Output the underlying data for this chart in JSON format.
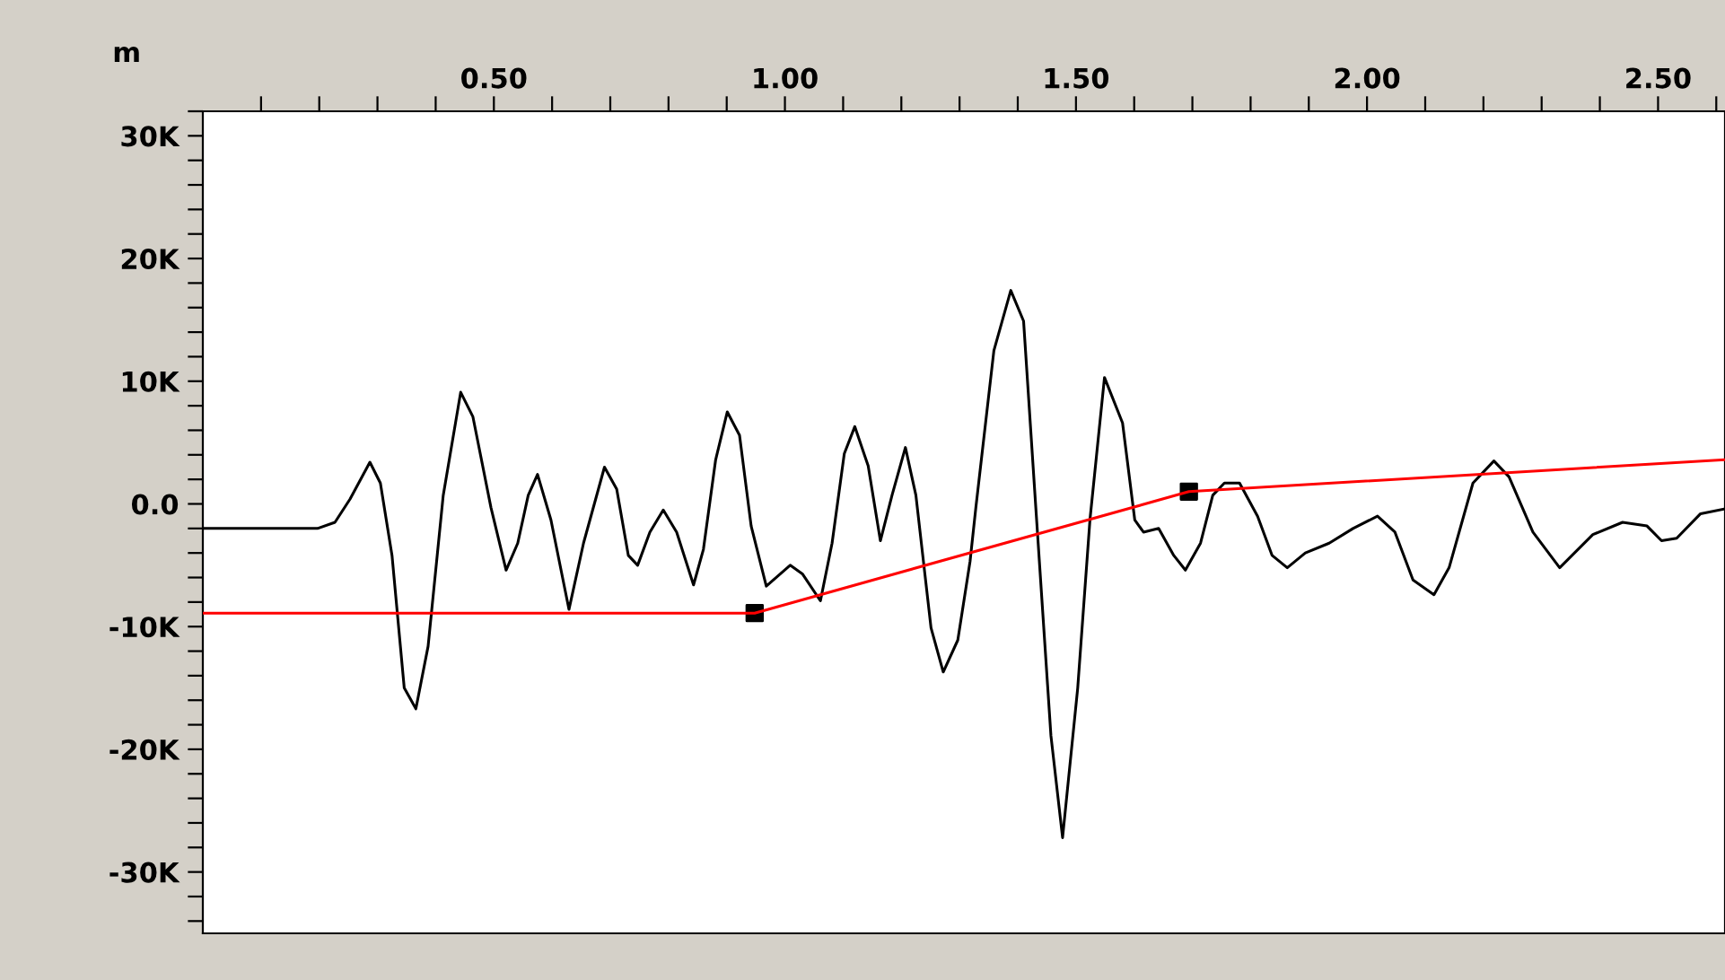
{
  "chart_data": {
    "type": "line",
    "xlabel": "m",
    "xlim": [
      0,
      2.615
    ],
    "ylim": [
      -35000,
      32000
    ],
    "xticks": [
      {
        "value": 0.1,
        "label": null
      },
      {
        "value": 0.2,
        "label": null
      },
      {
        "value": 0.3,
        "label": null
      },
      {
        "value": 0.4,
        "label": null
      },
      {
        "value": 0.5,
        "label": "0.50"
      },
      {
        "value": 0.6,
        "label": null
      },
      {
        "value": 0.7,
        "label": null
      },
      {
        "value": 0.8,
        "label": null
      },
      {
        "value": 0.9,
        "label": null
      },
      {
        "value": 1.0,
        "label": "1.00"
      },
      {
        "value": 1.1,
        "label": null
      },
      {
        "value": 1.2,
        "label": null
      },
      {
        "value": 1.3,
        "label": null
      },
      {
        "value": 1.4,
        "label": null
      },
      {
        "value": 1.5,
        "label": "1.50"
      },
      {
        "value": 1.6,
        "label": null
      },
      {
        "value": 1.7,
        "label": null
      },
      {
        "value": 1.8,
        "label": null
      },
      {
        "value": 1.9,
        "label": null
      },
      {
        "value": 2.0,
        "label": "2.00"
      },
      {
        "value": 2.1,
        "label": null
      },
      {
        "value": 2.2,
        "label": null
      },
      {
        "value": 2.3,
        "label": null
      },
      {
        "value": 2.4,
        "label": null
      },
      {
        "value": 2.5,
        "label": "2.50"
      },
      {
        "value": 2.6,
        "label": null
      }
    ],
    "yticks": [
      {
        "value": -34000,
        "label": null
      },
      {
        "value": -32000,
        "label": null
      },
      {
        "value": -30000,
        "label": "-30K"
      },
      {
        "value": -28000,
        "label": null
      },
      {
        "value": -26000,
        "label": null
      },
      {
        "value": -24000,
        "label": null
      },
      {
        "value": -22000,
        "label": null
      },
      {
        "value": -20000,
        "label": "-20K"
      },
      {
        "value": -18000,
        "label": null
      },
      {
        "value": -16000,
        "label": null
      },
      {
        "value": -14000,
        "label": null
      },
      {
        "value": -12000,
        "label": null
      },
      {
        "value": -10000,
        "label": "-10K"
      },
      {
        "value": -8000,
        "label": null
      },
      {
        "value": -6000,
        "label": null
      },
      {
        "value": -4000,
        "label": null
      },
      {
        "value": -2000,
        "label": null
      },
      {
        "value": 0,
        "label": "0.0"
      },
      {
        "value": 2000,
        "label": null
      },
      {
        "value": 4000,
        "label": null
      },
      {
        "value": 6000,
        "label": null
      },
      {
        "value": 8000,
        "label": null
      },
      {
        "value": 10000,
        "label": "10K"
      },
      {
        "value": 12000,
        "label": null
      },
      {
        "value": 14000,
        "label": null
      },
      {
        "value": 16000,
        "label": null
      },
      {
        "value": 18000,
        "label": null
      },
      {
        "value": 20000,
        "label": "20K"
      },
      {
        "value": 22000,
        "label": null
      },
      {
        "value": 24000,
        "label": null
      },
      {
        "value": 26000,
        "label": null
      },
      {
        "value": 28000,
        "label": null
      },
      {
        "value": 30000,
        "label": "30K"
      },
      {
        "value": 32000,
        "label": null
      }
    ],
    "grid": false,
    "legend": false,
    "series": [
      {
        "color": "#000000",
        "marker": "none",
        "x": [
          0,
          0.197,
          0.227,
          0.253,
          0.287,
          0.305,
          0.325,
          0.346,
          0.366,
          0.387,
          0.413,
          0.443,
          0.464,
          0.495,
          0.521,
          0.541,
          0.559,
          0.575,
          0.598,
          0.629,
          0.654,
          0.69,
          0.711,
          0.731,
          0.747,
          0.768,
          0.791,
          0.814,
          0.843,
          0.86,
          0.881,
          0.901,
          0.922,
          0.942,
          0.968,
          1.009,
          1.03,
          1.061,
          1.081,
          1.102,
          1.12,
          1.143,
          1.164,
          1.184,
          1.207,
          1.225,
          1.251,
          1.272,
          1.297,
          1.318,
          1.328,
          1.359,
          1.388,
          1.41,
          1.431,
          1.457,
          1.477,
          1.503,
          1.524,
          1.549,
          1.58,
          1.601,
          1.616,
          1.642,
          1.668,
          1.688,
          1.714,
          1.735,
          1.755,
          1.781,
          1.812,
          1.837,
          1.863,
          1.894,
          1.935,
          1.976,
          2.018,
          2.048,
          2.079,
          2.115,
          2.141,
          2.182,
          2.218,
          2.244,
          2.285,
          2.331,
          2.388,
          2.439,
          2.481,
          2.506,
          2.532,
          2.573,
          2.615
        ],
        "values": [
          -2000,
          -2000,
          -1500,
          400,
          3400,
          1700,
          -4200,
          -15000,
          -16700,
          -11600,
          700,
          9100,
          7100,
          -300,
          -5400,
          -3200,
          700,
          2400,
          -1300,
          -8600,
          -3200,
          3000,
          1200,
          -4200,
          -5000,
          -2300,
          -500,
          -2300,
          -6600,
          -3700,
          3600,
          7500,
          5600,
          -1800,
          -6700,
          -5000,
          -5700,
          -7900,
          -3200,
          4100,
          6300,
          3100,
          -3000,
          700,
          4600,
          700,
          -10100,
          -13700,
          -11100,
          -4700,
          -300,
          12500,
          17400,
          14900,
          -300,
          -18900,
          -27200,
          -15000,
          -1300,
          10300,
          6600,
          -1300,
          -2300,
          -2000,
          -4200,
          -5400,
          -3200,
          700,
          1700,
          1700,
          -1000,
          -4200,
          -5200,
          -4000,
          -3200,
          -2000,
          -1000,
          -2300,
          -6200,
          -7400,
          -5200,
          1700,
          3500,
          2200,
          -2300,
          -5200,
          -2500,
          -1500,
          -1800,
          -3000,
          -2800,
          -800,
          -400
        ]
      },
      {
        "color": "#ff0000",
        "marker": "none",
        "x": [
          0,
          0.948,
          1.694,
          2.615
        ],
        "values": [
          -8900,
          -8900,
          1000,
          3600
        ]
      },
      {
        "type": "scatter",
        "color": "#000000",
        "marker": "square",
        "x": [
          0.948,
          1.694
        ],
        "values": [
          -8900,
          1000
        ]
      }
    ]
  }
}
